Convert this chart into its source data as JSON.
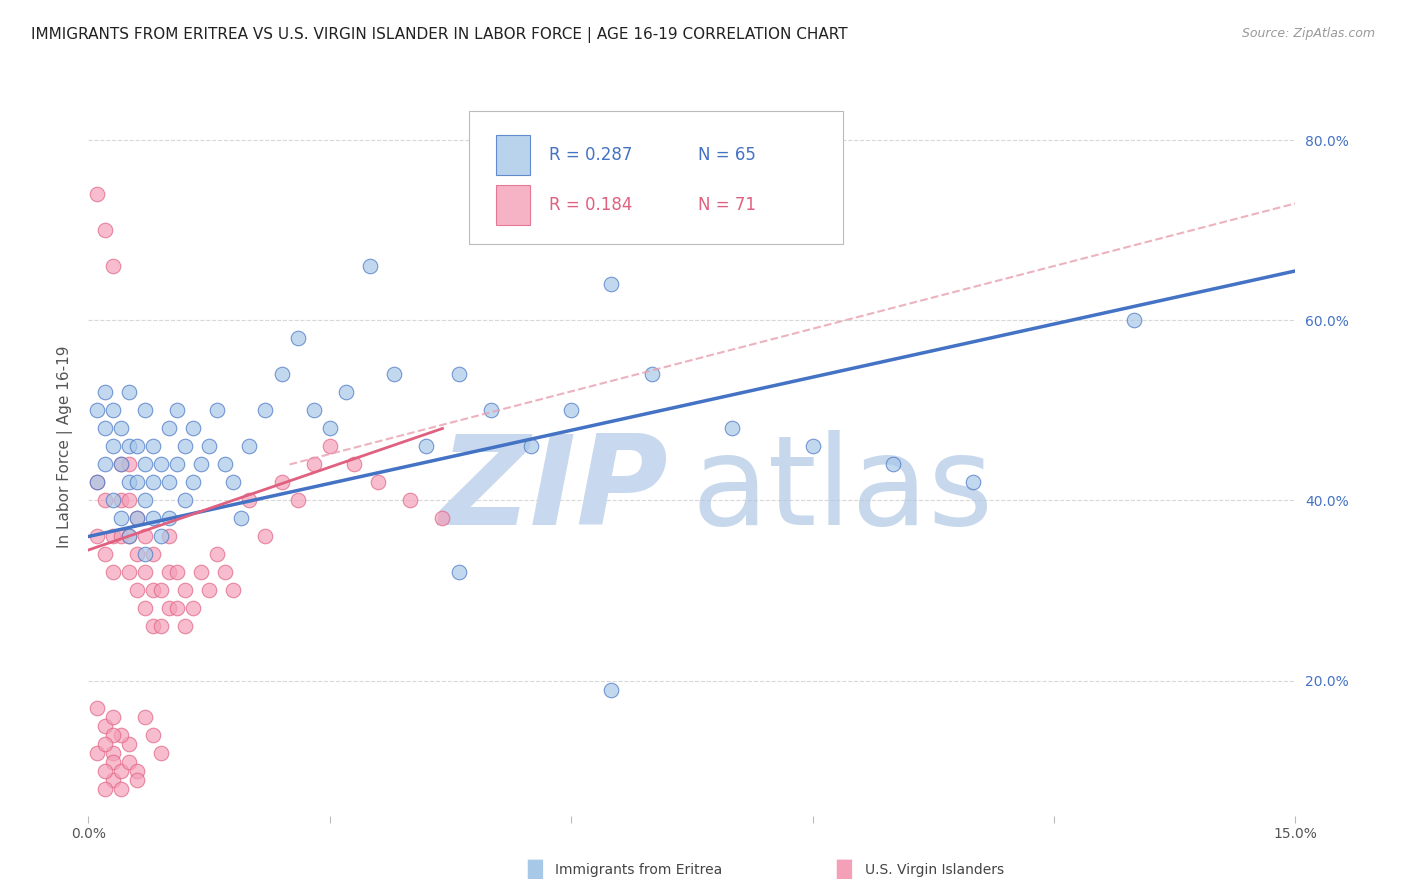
{
  "title": "IMMIGRANTS FROM ERITREA VS U.S. VIRGIN ISLANDER IN LABOR FORCE | AGE 16-19 CORRELATION CHART",
  "source": "Source: ZipAtlas.com",
  "ylabel": "In Labor Force | Age 16-19",
  "xlim": [
    0.0,
    0.15
  ],
  "ylim": [
    0.05,
    0.87
  ],
  "yticks_right": [
    0.2,
    0.4,
    0.6,
    0.8
  ],
  "ytick_labels_right": [
    "20.0%",
    "40.0%",
    "60.0%",
    "80.0%"
  ],
  "legend_r1": "R = 0.287",
  "legend_n1": "N = 65",
  "legend_r2": "R = 0.184",
  "legend_n2": "N = 71",
  "blue_color": "#a8c8e8",
  "pink_color": "#f4a0b8",
  "line_blue": "#4472c4",
  "line_pink": "#e06080",
  "line_dash_color": "#e8a0b0",
  "grid_color": "#d8d8d8",
  "background_color": "#ffffff",
  "title_fontsize": 11,
  "axis_label_fontsize": 11,
  "tick_fontsize": 10,
  "watermark_zip_color": "#c8d8ee",
  "watermark_atlas_color": "#b0c8e4",
  "blue_x": [
    0.001,
    0.001,
    0.002,
    0.002,
    0.002,
    0.003,
    0.003,
    0.003,
    0.004,
    0.004,
    0.004,
    0.005,
    0.005,
    0.005,
    0.005,
    0.006,
    0.006,
    0.006,
    0.007,
    0.007,
    0.007,
    0.007,
    0.008,
    0.008,
    0.008,
    0.009,
    0.009,
    0.01,
    0.01,
    0.01,
    0.011,
    0.011,
    0.012,
    0.012,
    0.013,
    0.013,
    0.014,
    0.015,
    0.016,
    0.017,
    0.018,
    0.019,
    0.02,
    0.022,
    0.024,
    0.026,
    0.028,
    0.03,
    0.032,
    0.035,
    0.038,
    0.042,
    0.046,
    0.05,
    0.055,
    0.06,
    0.065,
    0.07,
    0.08,
    0.09,
    0.1,
    0.11,
    0.13,
    0.065,
    0.046
  ],
  "blue_y": [
    0.42,
    0.5,
    0.44,
    0.48,
    0.52,
    0.4,
    0.46,
    0.5,
    0.38,
    0.44,
    0.48,
    0.36,
    0.42,
    0.46,
    0.52,
    0.38,
    0.42,
    0.46,
    0.34,
    0.4,
    0.44,
    0.5,
    0.38,
    0.42,
    0.46,
    0.36,
    0.44,
    0.38,
    0.42,
    0.48,
    0.44,
    0.5,
    0.4,
    0.46,
    0.42,
    0.48,
    0.44,
    0.46,
    0.5,
    0.44,
    0.42,
    0.38,
    0.46,
    0.5,
    0.54,
    0.58,
    0.5,
    0.48,
    0.52,
    0.66,
    0.54,
    0.46,
    0.54,
    0.5,
    0.46,
    0.5,
    0.64,
    0.54,
    0.48,
    0.46,
    0.44,
    0.42,
    0.6,
    0.19,
    0.32
  ],
  "pink_x": [
    0.001,
    0.001,
    0.001,
    0.002,
    0.002,
    0.002,
    0.003,
    0.003,
    0.003,
    0.004,
    0.004,
    0.004,
    0.005,
    0.005,
    0.005,
    0.005,
    0.006,
    0.006,
    0.006,
    0.007,
    0.007,
    0.007,
    0.008,
    0.008,
    0.008,
    0.009,
    0.009,
    0.01,
    0.01,
    0.01,
    0.011,
    0.011,
    0.012,
    0.012,
    0.013,
    0.014,
    0.015,
    0.016,
    0.017,
    0.018,
    0.02,
    0.022,
    0.024,
    0.026,
    0.028,
    0.03,
    0.033,
    0.036,
    0.04,
    0.044,
    0.002,
    0.003,
    0.003,
    0.003,
    0.004,
    0.004,
    0.005,
    0.005,
    0.006,
    0.006,
    0.007,
    0.008,
    0.009,
    0.001,
    0.001,
    0.002,
    0.002,
    0.003,
    0.004,
    0.003,
    0.002
  ],
  "pink_y": [
    0.36,
    0.42,
    0.74,
    0.34,
    0.4,
    0.7,
    0.32,
    0.36,
    0.66,
    0.36,
    0.4,
    0.44,
    0.32,
    0.36,
    0.4,
    0.44,
    0.3,
    0.34,
    0.38,
    0.28,
    0.32,
    0.36,
    0.26,
    0.3,
    0.34,
    0.26,
    0.3,
    0.28,
    0.32,
    0.36,
    0.28,
    0.32,
    0.26,
    0.3,
    0.28,
    0.32,
    0.3,
    0.34,
    0.32,
    0.3,
    0.4,
    0.36,
    0.42,
    0.4,
    0.44,
    0.46,
    0.44,
    0.42,
    0.4,
    0.38,
    0.15,
    0.12,
    0.11,
    0.09,
    0.1,
    0.08,
    0.13,
    0.11,
    0.1,
    0.09,
    0.16,
    0.14,
    0.12,
    0.17,
    0.12,
    0.1,
    0.08,
    0.16,
    0.14,
    0.14,
    0.13
  ],
  "blue_line_x0": 0.0,
  "blue_line_x1": 0.15,
  "blue_line_y0": 0.36,
  "blue_line_y1": 0.655,
  "pink_line_x0": 0.0,
  "pink_line_x1": 0.044,
  "pink_line_y0": 0.345,
  "pink_line_y1": 0.48,
  "dash_line_x0": 0.025,
  "dash_line_x1": 0.15,
  "dash_line_y0": 0.44,
  "dash_line_y1": 0.73
}
